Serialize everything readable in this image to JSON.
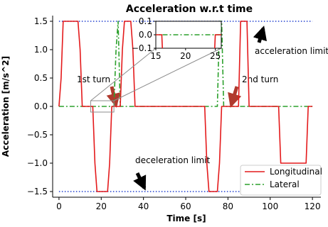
{
  "chart_data": {
    "type": "line",
    "title": "Acceleration w.r.t time",
    "xlabel": "Time [s]",
    "ylabel": "Acceleration [m/s^2]",
    "xlim": [
      -3,
      124
    ],
    "ylim": [
      -1.6,
      1.6
    ],
    "xticks": [
      0,
      20,
      40,
      60,
      80,
      100,
      120
    ],
    "yticks": [
      1.5,
      1.0,
      0.5,
      0.0,
      -0.5,
      -1.0,
      -1.5
    ],
    "xtick_labels": [
      "0",
      "20",
      "40",
      "60",
      "80",
      "100",
      "120"
    ],
    "ytick_labels": [
      "1.5",
      "1.0",
      "0.5",
      "0.0",
      "−0.5",
      "−1.0",
      "−1.5"
    ],
    "grid": false,
    "legend_position": "lower-right",
    "series": [
      {
        "name": "Longitudinal",
        "color": "#e41a1c",
        "style": "solid",
        "x": [
          0,
          1,
          2,
          9,
          10,
          11,
          16,
          17,
          18,
          19,
          22,
          23,
          24,
          25,
          26,
          27,
          28,
          29,
          30,
          31,
          32,
          34,
          35,
          36,
          37,
          69,
          70,
          71,
          74,
          75,
          76,
          77,
          78,
          79,
          80,
          81,
          82,
          83,
          84,
          85,
          86,
          87,
          88,
          89,
          90,
          91,
          104,
          105,
          117,
          118,
          120
        ],
        "y": [
          0,
          0.5,
          1.5,
          1.5,
          1.0,
          0,
          0,
          -1.0,
          -1.5,
          -1.5,
          -1.5,
          -1.5,
          -1.0,
          0,
          0,
          0,
          0,
          0,
          1.0,
          1.5,
          1.5,
          1.5,
          1.0,
          0,
          0,
          0,
          -1.0,
          -1.5,
          -1.5,
          -1.5,
          -1.0,
          0,
          0,
          0,
          0,
          0,
          0,
          0,
          0,
          0,
          1.5,
          1.5,
          1.5,
          1.5,
          0,
          0,
          0,
          -1.0,
          -1.0,
          0,
          0
        ]
      },
      {
        "name": "Lateral",
        "color": "#2ca02c",
        "style": "dashdot",
        "x": [
          0,
          23,
          24,
          26,
          27,
          28,
          29,
          30,
          75,
          76,
          77,
          78,
          79,
          80,
          120
        ],
        "y": [
          0,
          0,
          0,
          0,
          1.0,
          1.5,
          0,
          0,
          0,
          1.5,
          1.5,
          0,
          0,
          0,
          0
        ]
      },
      {
        "name": "acceleration limit",
        "color": "#1f3fcf",
        "style": "dotted",
        "x": [
          0,
          120
        ],
        "y": [
          1.5,
          1.5
        ]
      },
      {
        "name": "deceleration limit",
        "color": "#1f3fcf",
        "style": "dotted",
        "x": [
          0,
          120
        ],
        "y": [
          -1.5,
          -1.5
        ]
      }
    ],
    "legend": [
      "Longitudinal",
      "Lateral"
    ],
    "annotations": [
      {
        "text": "acceleration limit",
        "x": 95,
        "y": 1.5
      },
      {
        "text": "deceleration limit",
        "x": 40,
        "y": -1.5
      },
      {
        "text": "1st turn",
        "x": 27,
        "y": 0.0
      },
      {
        "text": "2nd turn",
        "x": 80,
        "y": 0.0
      }
    ],
    "inset": {
      "xlim": [
        15,
        26
      ],
      "ylim": [
        -0.1,
        0.1
      ],
      "xticks": [
        15,
        20,
        25
      ],
      "yticks": [
        0.1,
        0.0,
        -0.1
      ],
      "xtick_labels": [
        "15",
        "20",
        "25"
      ],
      "ytick_labels": [
        "0.1",
        "0.0",
        "−0.1"
      ]
    }
  }
}
